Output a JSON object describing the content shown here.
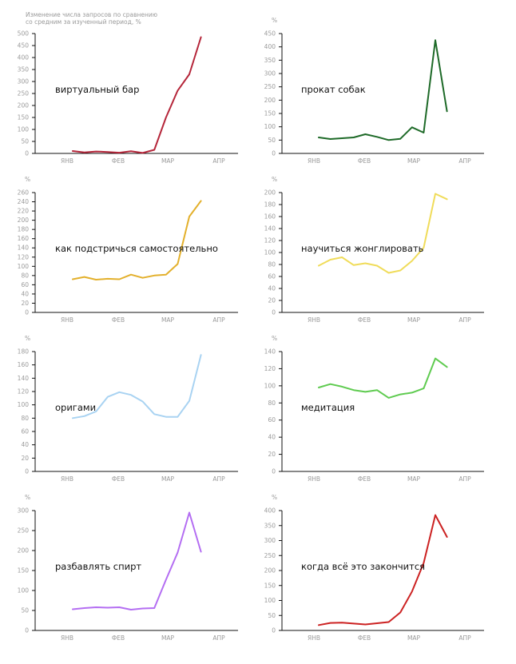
{
  "subtitle_lines": [
    "Изменение числа запросов по сравнению",
    "со средним за изученный период, %"
  ],
  "pct_sign": "%",
  "months": [
    "ЯНВ",
    "ФЕВ",
    "МАР",
    "АПР"
  ],
  "chart_data": [
    {
      "type": "line",
      "title": "виртуальный бар",
      "color": "#b5263a",
      "ylim": [
        0,
        500
      ],
      "yticks": [
        0,
        50,
        100,
        150,
        200,
        250,
        300,
        350,
        400,
        450,
        500
      ],
      "values": [
        10,
        4,
        8,
        6,
        3,
        9,
        2,
        15,
        150,
        262,
        330,
        485
      ]
    },
    {
      "type": "line",
      "title": "прокат собак",
      "color": "#1e6a28",
      "ylim": [
        0,
        450
      ],
      "yticks": [
        0,
        50,
        100,
        150,
        200,
        250,
        300,
        350,
        400,
        450
      ],
      "values": [
        60,
        54,
        57,
        60,
        72,
        62,
        50,
        55,
        98,
        78,
        425,
        158
      ]
    },
    {
      "type": "line",
      "title": "как подстричься самостоятельно",
      "color": "#e3b02c",
      "ylim": [
        0,
        260
      ],
      "yticks": [
        0,
        20,
        40,
        60,
        80,
        100,
        120,
        140,
        160,
        180,
        200,
        220,
        240,
        260
      ],
      "values": [
        72,
        77,
        71,
        73,
        72,
        82,
        75,
        80,
        82,
        105,
        208,
        242
      ]
    },
    {
      "type": "line",
      "title": "научиться жонглировать",
      "color": "#f0dc5a",
      "ylim": [
        0,
        200
      ],
      "yticks": [
        0,
        20,
        40,
        60,
        80,
        100,
        120,
        140,
        160,
        180,
        200
      ],
      "values": [
        78,
        88,
        92,
        79,
        82,
        78,
        66,
        70,
        86,
        108,
        198,
        189
      ]
    },
    {
      "type": "line",
      "title": "оригами",
      "color": "#a9d3f2",
      "ylim": [
        0,
        180
      ],
      "yticks": [
        0,
        20,
        40,
        60,
        80,
        100,
        120,
        140,
        160,
        180
      ],
      "values": [
        80,
        83,
        90,
        112,
        119,
        115,
        105,
        86,
        82,
        82,
        106,
        175
      ]
    },
    {
      "type": "line",
      "title": "медитация",
      "color": "#5fcb50",
      "ylim": [
        0,
        140
      ],
      "yticks": [
        0,
        20,
        40,
        60,
        80,
        100,
        120,
        140
      ],
      "values": [
        98,
        102,
        99,
        95,
        93,
        95,
        86,
        90,
        92,
        97,
        132,
        122
      ]
    },
    {
      "type": "line",
      "title": "разбавлять спирт",
      "color": "#b46ef2",
      "ylim": [
        0,
        300
      ],
      "yticks": [
        0,
        50,
        100,
        150,
        200,
        250,
        300
      ],
      "values": [
        53,
        56,
        58,
        57,
        58,
        52,
        55,
        56,
        127,
        195,
        295,
        197
      ]
    },
    {
      "type": "line",
      "title": "когда всё это закончится",
      "color": "#cc2222",
      "ylim": [
        0,
        400
      ],
      "yticks": [
        0,
        50,
        100,
        150,
        200,
        250,
        300,
        350,
        400
      ],
      "values": [
        18,
        25,
        26,
        23,
        20,
        24,
        28,
        60,
        130,
        225,
        385,
        312
      ]
    }
  ]
}
